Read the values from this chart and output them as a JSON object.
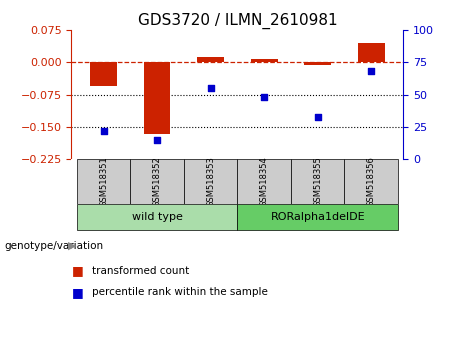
{
  "title": "GDS3720 / ILMN_2610981",
  "samples": [
    "GSM518351",
    "GSM518352",
    "GSM518353",
    "GSM518354",
    "GSM518355",
    "GSM518356"
  ],
  "red_bars": [
    -0.055,
    -0.165,
    0.012,
    0.008,
    -0.005,
    0.045
  ],
  "blue_dots_pct": [
    22,
    15,
    55,
    48,
    33,
    68
  ],
  "ylim_left": [
    -0.225,
    0.075
  ],
  "ylim_right": [
    0,
    100
  ],
  "yticks_left": [
    0.075,
    0,
    -0.075,
    -0.15,
    -0.225
  ],
  "yticks_right": [
    100,
    75,
    50,
    25,
    0
  ],
  "hline_dotted": [
    -0.075,
    -0.15
  ],
  "wild_type_label": "wild type",
  "rora_label": "RORalpha1delDE",
  "genotype_label": "genotype/variation",
  "legend_red": "transformed count",
  "legend_blue": "percentile rank within the sample",
  "bar_color": "#cc2200",
  "dot_color": "#0000cc",
  "wild_type_bg": "#aaddaa",
  "rora_bg": "#66cc66",
  "header_bg": "#cccccc",
  "title_fontsize": 11,
  "tick_fontsize": 8,
  "bar_width": 0.5,
  "arrow_color": "#888888"
}
